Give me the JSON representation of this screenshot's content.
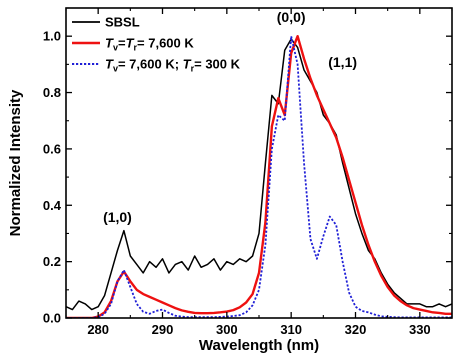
{
  "chart_data": {
    "type": "line",
    "title": "",
    "xlabel": "Wavelength (nm)",
    "ylabel": "Normalized Intensity",
    "xlim": [
      275,
      335
    ],
    "ylim": [
      0,
      1.1
    ],
    "xticks": [
      280,
      290,
      300,
      310,
      320,
      330
    ],
    "xtick_labels": [
      "280",
      "290",
      "300",
      "310",
      "320",
      "330"
    ],
    "yticks": [
      0.0,
      0.2,
      0.4,
      0.6,
      0.8,
      1.0
    ],
    "ytick_labels": [
      "0.0",
      "0.2",
      "0.4",
      "0.6",
      "0.8",
      "1.0"
    ],
    "grid": false,
    "legend_position": "top-left",
    "legend": [
      {
        "prefix": "SBSL"
      },
      {
        "t1": "T",
        "s1": "v",
        "mid": "=",
        "t2": "T",
        "s2": "r",
        "suffix": "= 7,600 K"
      },
      {
        "t1": "T",
        "s1": "v",
        "mid": "= 7,600 K; ",
        "t2": "T",
        "s2": "r",
        "suffix": "= 300 K"
      }
    ],
    "annotations": [
      {
        "text": "(0,0)",
        "x": 310,
        "y": 1.05
      },
      {
        "text": "(1,1)",
        "x": 318,
        "y": 0.89
      },
      {
        "text": "(1,0)",
        "x": 283,
        "y": 0.34
      }
    ],
    "series": [
      {
        "color": "#000000",
        "style": "solid",
        "x": [
          275,
          276,
          277,
          278,
          279,
          280,
          281,
          282,
          283,
          284,
          285,
          286,
          287,
          288,
          289,
          290,
          291,
          292,
          293,
          294,
          295,
          296,
          297,
          298,
          299,
          300,
          301,
          302,
          303,
          304,
          305,
          306,
          307,
          308,
          309,
          310,
          311,
          312,
          313,
          314,
          315,
          316,
          317,
          318,
          319,
          320,
          321,
          322,
          323,
          324,
          325,
          326,
          327,
          328,
          329,
          330,
          331,
          332,
          333,
          334,
          335
        ],
        "y": [
          0.04,
          0.03,
          0.06,
          0.05,
          0.03,
          0.04,
          0.08,
          0.16,
          0.24,
          0.31,
          0.22,
          0.19,
          0.16,
          0.2,
          0.18,
          0.21,
          0.16,
          0.19,
          0.2,
          0.17,
          0.22,
          0.18,
          0.19,
          0.21,
          0.17,
          0.2,
          0.19,
          0.21,
          0.2,
          0.22,
          0.3,
          0.55,
          0.79,
          0.76,
          0.95,
          0.99,
          0.96,
          0.88,
          0.84,
          0.8,
          0.72,
          0.69,
          0.65,
          0.55,
          0.46,
          0.37,
          0.3,
          0.24,
          0.21,
          0.16,
          0.12,
          0.09,
          0.07,
          0.05,
          0.05,
          0.05,
          0.04,
          0.04,
          0.05,
          0.04,
          0.05
        ]
      },
      {
        "color": "#ee1111",
        "style": "solid",
        "x": [
          275,
          276,
          277,
          278,
          279,
          280,
          281,
          282,
          283,
          284,
          285,
          286,
          287,
          288,
          289,
          290,
          291,
          292,
          293,
          294,
          295,
          296,
          297,
          298,
          299,
          300,
          301,
          302,
          303,
          304,
          305,
          306,
          307,
          308,
          309,
          310,
          311,
          312,
          313,
          314,
          315,
          316,
          317,
          318,
          319,
          320,
          321,
          322,
          323,
          324,
          325,
          326,
          327,
          328,
          329,
          330,
          331,
          332,
          333,
          334,
          335
        ],
        "y": [
          0.0,
          0.0,
          0.0,
          0.0,
          0.0,
          0.005,
          0.02,
          0.06,
          0.13,
          0.165,
          0.13,
          0.1,
          0.085,
          0.075,
          0.065,
          0.055,
          0.045,
          0.035,
          0.027,
          0.022,
          0.018,
          0.017,
          0.017,
          0.018,
          0.02,
          0.023,
          0.028,
          0.038,
          0.055,
          0.085,
          0.16,
          0.34,
          0.68,
          0.78,
          0.72,
          0.94,
          1.0,
          0.92,
          0.85,
          0.79,
          0.74,
          0.69,
          0.64,
          0.57,
          0.49,
          0.41,
          0.33,
          0.26,
          0.2,
          0.15,
          0.11,
          0.08,
          0.06,
          0.045,
          0.035,
          0.03,
          0.025,
          0.02,
          0.018,
          0.015,
          0.015
        ]
      },
      {
        "color": "#1f1fd6",
        "style": "dotted",
        "x": [
          275,
          276,
          277,
          278,
          279,
          280,
          281,
          282,
          283,
          284,
          285,
          286,
          287,
          288,
          289,
          290,
          291,
          292,
          293,
          294,
          295,
          296,
          297,
          298,
          299,
          300,
          301,
          302,
          303,
          304,
          305,
          306,
          307,
          308,
          309,
          310,
          311,
          312,
          313,
          314,
          315,
          316,
          317,
          318,
          319,
          320,
          321,
          322,
          323,
          324,
          325,
          326,
          327,
          328,
          329,
          330,
          331,
          332,
          333,
          334,
          335
        ],
        "y": [
          0.0,
          0.0,
          0.0,
          0.0,
          0.0,
          0.003,
          0.015,
          0.05,
          0.13,
          0.17,
          0.11,
          0.05,
          0.022,
          0.015,
          0.025,
          0.03,
          0.018,
          0.008,
          0.005,
          0.003,
          0.003,
          0.003,
          0.003,
          0.003,
          0.004,
          0.005,
          0.007,
          0.01,
          0.02,
          0.045,
          0.1,
          0.26,
          0.6,
          0.72,
          0.7,
          1.0,
          0.9,
          0.55,
          0.28,
          0.21,
          0.29,
          0.36,
          0.33,
          0.2,
          0.09,
          0.04,
          0.025,
          0.02,
          0.012,
          0.006,
          0.004,
          0.003,
          0.002,
          0.002,
          0.002,
          0.002,
          0.002,
          0.002,
          0.002,
          0.002,
          0.002
        ]
      }
    ]
  }
}
